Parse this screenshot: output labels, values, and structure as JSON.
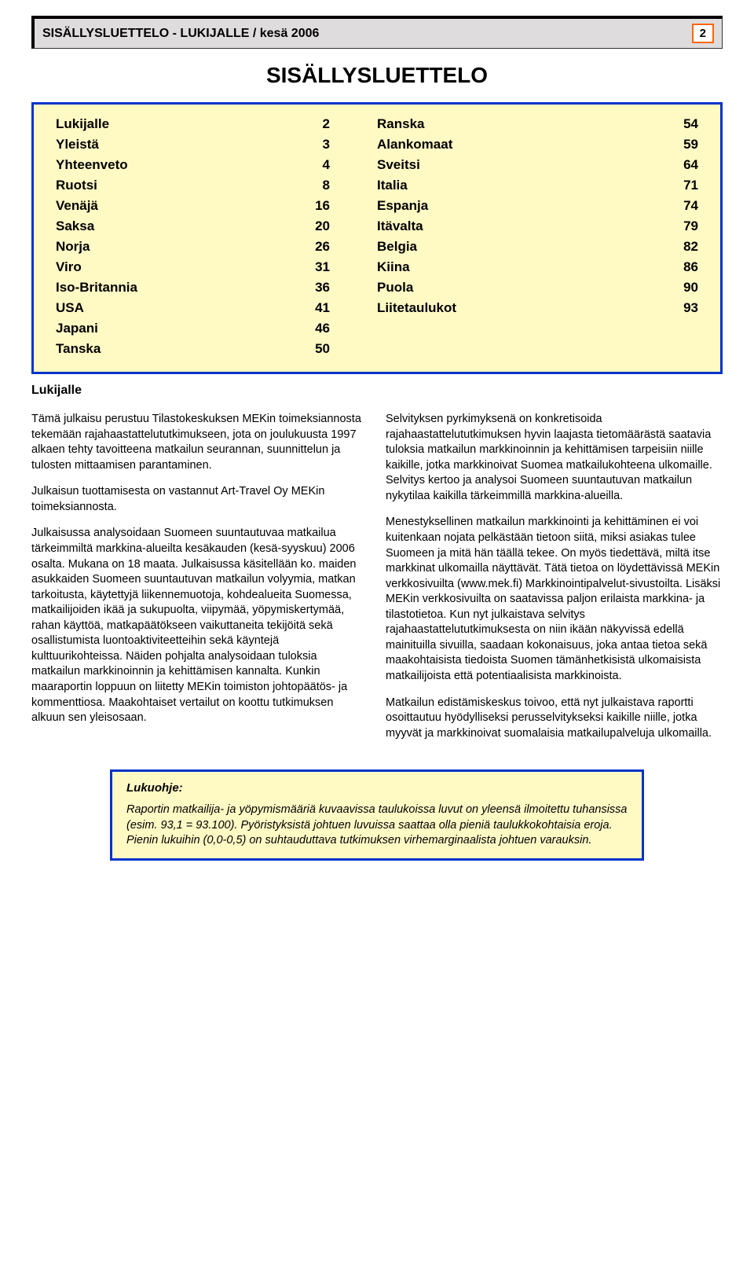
{
  "header": {
    "title": "SISÄLLYSLUETTELO - LUKIJALLE / kesä 2006",
    "page_number": "2"
  },
  "main_title": "SISÄLLYSLUETTELO",
  "toc": {
    "border_color": "#0033cc",
    "bg_color": "#fff9c4",
    "left": [
      {
        "label": "Lukijalle",
        "num": "2"
      },
      {
        "label": "Yleistä",
        "num": "3"
      },
      {
        "label": "Yhteenveto",
        "num": "4"
      },
      {
        "label": "Ruotsi",
        "num": "8"
      },
      {
        "label": "Venäjä",
        "num": "16"
      },
      {
        "label": "Saksa",
        "num": "20"
      },
      {
        "label": "Norja",
        "num": "26"
      },
      {
        "label": "Viro",
        "num": "31"
      },
      {
        "label": "Iso-Britannia",
        "num": "36"
      },
      {
        "label": "USA",
        "num": "41"
      },
      {
        "label": "Japani",
        "num": "46"
      },
      {
        "label": "Tanska",
        "num": "50"
      }
    ],
    "right": [
      {
        "label": "Ranska",
        "num": "54"
      },
      {
        "label": "Alankomaat",
        "num": "59"
      },
      {
        "label": "Sveitsi",
        "num": "64"
      },
      {
        "label": "Italia",
        "num": "71"
      },
      {
        "label": "Espanja",
        "num": "74"
      },
      {
        "label": "Itävalta",
        "num": "79"
      },
      {
        "label": "Belgia",
        "num": "82"
      },
      {
        "label": "Kiina",
        "num": "86"
      },
      {
        "label": "Puola",
        "num": "90"
      },
      {
        "label": "Liitetaulukot",
        "num": "93"
      }
    ]
  },
  "lukijalle_heading": "Lukijalle",
  "left_paras": [
    "Tämä julkaisu perustuu Tilastokeskuksen MEKin toimeksiannosta tekemään rajahaastattelututkimukseen, jota on joulukuusta 1997 alkaen tehty tavoitteena matkailun seurannan, suunnittelun ja tulosten mittaamisen parantaminen.",
    "Julkaisun tuottamisesta on vastannut Art-Travel Oy MEKin toimeksiannosta.",
    "Julkaisussa analysoidaan Suomeen suuntautuvaa matkailua tärkeimmiltä markkina-alueilta kesäkauden (kesä-syyskuu) 2006 osalta. Mukana on 18 maata. Julkaisussa käsitellään ko. maiden asukkaiden Suomeen suuntautuvan matkailun volyymia, matkan tarkoitusta, käytettyjä liikennemuotoja, kohdealueita Suomessa, matkailijoiden ikää ja sukupuolta, viipymää, yöpymiskertymää, rahan käyttöä, matkapäätökseen vaikuttaneita tekijöitä sekä osallistumista luontoaktiviteetteihin sekä käyntejä kulttuurikohteissa. Näiden pohjalta analysoidaan tuloksia matkailun markkinoinnin ja kehittämisen kannalta. Kunkin maaraportin loppuun on liitetty MEKin toimiston johtopäätös- ja kommenttiosa. Maakohtaiset vertailut on koottu tutkimuksen alkuun sen yleisosaan."
  ],
  "right_paras": [
    "Selvityksen pyrkimyksenä on konkretisoida rajahaastattelututkimuksen hyvin laajasta tietomäärästä saatavia tuloksia matkailun markkinoinnin ja kehittämisen tarpeisiin niille kaikille, jotka markkinoivat Suomea matkailukohteena ulkomaille. Selvitys kertoo ja analysoi Suomeen suuntautuvan matkailun nykytilaa kaikilla tärkeimmillä markkina-alueilla.",
    "Menestyksellinen matkailun markkinointi ja kehittäminen ei voi kuitenkaan nojata pelkästään tietoon siitä, miksi asiakas tulee Suomeen ja mitä hän täällä tekee. On myös tiedettävä, miltä itse markkinat ulkomailla näyttävät. Tätä tietoa on löydettävissä MEKin verkkosivuilta (www.mek.fi) Markkinointipalvelut-sivustoilta. Lisäksi MEKin verkkosivuilta on saatavissa paljon erilaista markkina- ja tilastotietoa. Kun nyt julkaistava selvitys rajahaastattelututkimuksesta on niin ikään näkyvissä edellä mainituilla sivuilla, saadaan kokonaisuus, joka antaa tietoa sekä maakohtaisista tiedoista Suomen tämänhetkisistä ulkomaisista matkailijoista että potentiaalisista markkinoista.",
    "Matkailun edistämiskeskus toivoo, että nyt julkaistava raportti osoittautuu hyödylliseksi perusselvitykseksi kaikille niille, jotka myyvät ja markkinoivat suomalaisia matkailupalveluja ulkomailla."
  ],
  "lukuohje": {
    "title": "Lukuohje:",
    "body": "Raportin matkailija- ja yöpymismääriä kuvaavissa taulukoissa luvut on yleensä ilmoitettu tuhansissa (esim. 93,1 = 93.100). Pyöristyksistä johtuen luvuissa saattaa olla pieniä taulukkokohtaisia eroja. Pienin lukuihin (0,0-0,5) on suhtauduttava tutkimuksen virhemarginaalista johtuen varauksin."
  },
  "colors": {
    "header_bg": "#dedcdc",
    "pagenum_border": "#ff6600",
    "box_border": "#0033cc",
    "box_bg": "#fff9c4"
  }
}
